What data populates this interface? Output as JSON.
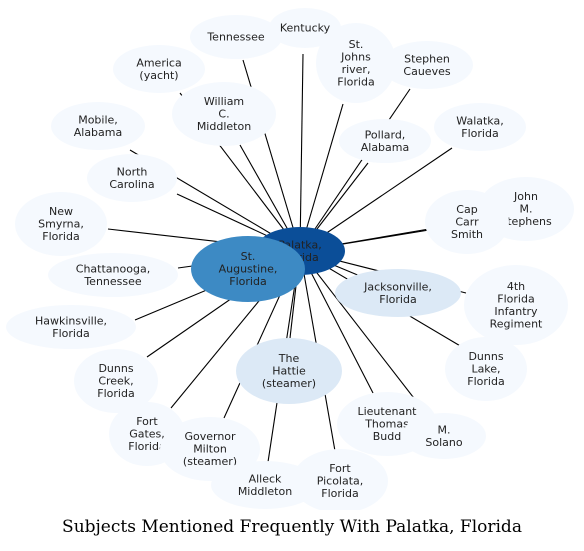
{
  "caption": "Subjects Mentioned Frequently With Palatka, Florida",
  "colors": {
    "center": "#0b4e98",
    "major": "#3d8ac4",
    "secondary": "#dce9f6",
    "leaf": "#f5f9fe",
    "edge": "#000000",
    "text": "#222222"
  },
  "center": {
    "id": "palatka",
    "lines": [
      "Palatka,",
      "Florida"
    ]
  },
  "nodes": [
    {
      "id": "kentucky",
      "lines": [
        "Kentucky"
      ],
      "tier": "leaf"
    },
    {
      "id": "tennessee",
      "lines": [
        "Tennessee"
      ],
      "tier": "leaf"
    },
    {
      "id": "st-johns-river",
      "lines": [
        "St.",
        "Johns",
        "river,",
        "Florida"
      ],
      "tier": "leaf"
    },
    {
      "id": "stephen-caueves",
      "lines": [
        "Stephen",
        "Caueves"
      ],
      "tier": "leaf"
    },
    {
      "id": "america-yacht",
      "lines": [
        "America",
        "(yacht)"
      ],
      "tier": "leaf"
    },
    {
      "id": "william-middleton",
      "lines": [
        "William",
        "C.",
        "Middleton"
      ],
      "tier": "leaf"
    },
    {
      "id": "pollard-alabama",
      "lines": [
        "Pollard,",
        "Alabama"
      ],
      "tier": "leaf"
    },
    {
      "id": "walatka-florida",
      "lines": [
        "Walatka,",
        "Florida"
      ],
      "tier": "leaf"
    },
    {
      "id": "mobile-alabama",
      "lines": [
        "Mobile,",
        "Alabama"
      ],
      "tier": "leaf"
    },
    {
      "id": "north-carolina",
      "lines": [
        "North",
        "Carolina"
      ],
      "tier": "leaf"
    },
    {
      "id": "john-stephens",
      "lines": [
        "John",
        "M.",
        "Stephens"
      ],
      "tier": "leaf"
    },
    {
      "id": "cap-carr-smith",
      "lines": [
        "Cap",
        "Carr",
        "Smith"
      ],
      "tier": "leaf"
    },
    {
      "id": "new-smyrna",
      "lines": [
        "New",
        "Smyrna,",
        "Florida"
      ],
      "tier": "leaf"
    },
    {
      "id": "chattanooga",
      "lines": [
        "Chattanooga,",
        "Tennessee"
      ],
      "tier": "leaf"
    },
    {
      "id": "st-augustine",
      "lines": [
        "St.",
        "Augustine,",
        "Florida"
      ],
      "tier": "major"
    },
    {
      "id": "jacksonville",
      "lines": [
        "Jacksonville,",
        "Florida"
      ],
      "tier": "secondary"
    },
    {
      "id": "4th-infantry",
      "lines": [
        "4th",
        "Florida",
        "Infantry",
        "Regiment"
      ],
      "tier": "leaf"
    },
    {
      "id": "hawkinsville",
      "lines": [
        "Hawkinsville,",
        "Florida"
      ],
      "tier": "leaf"
    },
    {
      "id": "hattie-steamer",
      "lines": [
        "The",
        "Hattie",
        "(steamer)"
      ],
      "tier": "secondary"
    },
    {
      "id": "dunns-creek",
      "lines": [
        "Dunns",
        "Creek,",
        "Florida"
      ],
      "tier": "leaf"
    },
    {
      "id": "dunns-lake",
      "lines": [
        "Dunns",
        "Lake,",
        "Florida"
      ],
      "tier": "leaf"
    },
    {
      "id": "lieutenant-budd",
      "lines": [
        "Lieutenant",
        "Thomas",
        "Budd"
      ],
      "tier": "leaf"
    },
    {
      "id": "fort-gates",
      "lines": [
        "Fort",
        "Gates,",
        "Florida"
      ],
      "tier": "leaf"
    },
    {
      "id": "governor-milton",
      "lines": [
        "Governor",
        "Milton",
        "(steamer)"
      ],
      "tier": "leaf"
    },
    {
      "id": "m-solano",
      "lines": [
        "M.",
        "Solano"
      ],
      "tier": "leaf"
    },
    {
      "id": "alleck-middleton",
      "lines": [
        "Alleck",
        "Middleton"
      ],
      "tier": "leaf"
    },
    {
      "id": "fort-picolata",
      "lines": [
        "Fort",
        "Picolata,",
        "Florida"
      ],
      "tier": "leaf"
    }
  ]
}
